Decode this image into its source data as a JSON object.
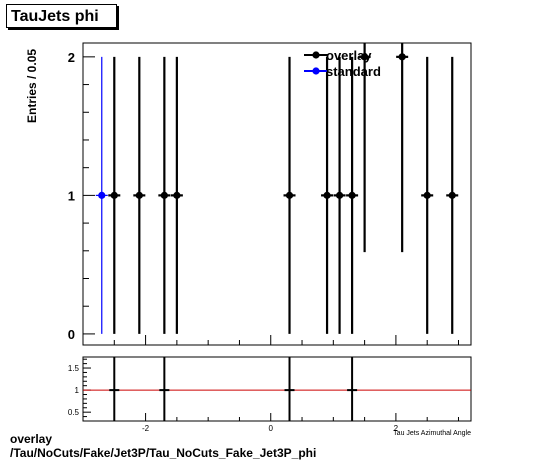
{
  "title": "TauJets phi",
  "footer": {
    "line1": "overlay",
    "line2": "/Tau/NoCuts/Fake/Jet3P/Tau_NoCuts_Fake_Jet3P_phi"
  },
  "chart_data": [
    {
      "type": "scatter",
      "panel": "main",
      "ylabel": "Entries / 0.05",
      "xlim": [
        -3.0,
        3.2
      ],
      "ylim": [
        -0.08,
        2.1
      ],
      "yticks": [
        0,
        1,
        2
      ],
      "xticks_minor_every": 0.5,
      "legend": {
        "placement": "top-right",
        "entries": [
          "overlay",
          "standard"
        ]
      },
      "series": [
        {
          "name": "overlay",
          "color": "#000000",
          "x": [
            -2.5,
            -2.1,
            -1.7,
            -1.5,
            0.3,
            0.9,
            1.1,
            1.3,
            1.5,
            2.1,
            2.5,
            2.9
          ],
          "y": [
            1,
            1,
            1,
            1,
            1,
            1,
            1,
            1,
            2,
            2,
            1,
            1
          ],
          "yerr": [
            1,
            1,
            1,
            1,
            1,
            1,
            1,
            1,
            1.41,
            1.41,
            1,
            1
          ]
        },
        {
          "name": "standard",
          "color": "#0000ff",
          "x": [
            -2.7
          ],
          "y": [
            1
          ],
          "yerr": [
            1
          ]
        }
      ]
    },
    {
      "type": "scatter",
      "panel": "ratio",
      "xlabel": "Tau Jets Azimuthal Angle",
      "xlim": [
        -3.0,
        3.2
      ],
      "ylim": [
        0.3,
        1.75
      ],
      "yticks": [
        0.5,
        1,
        1.5
      ],
      "ytick_labels": [
        "0.5",
        "1",
        "1.5"
      ],
      "xticks": [
        -2,
        0,
        2
      ],
      "xtick_labels": [
        "-2",
        "0",
        "2"
      ],
      "reference_line": {
        "y": 1,
        "color": "#cc0000"
      },
      "series": [
        {
          "name": "ratio",
          "color": "#000000",
          "x": [
            -2.5,
            -1.7,
            0.3,
            1.3
          ],
          "y": [
            1,
            1,
            1,
            1
          ],
          "yerr": [
            1,
            1,
            1,
            1
          ]
        }
      ]
    }
  ]
}
